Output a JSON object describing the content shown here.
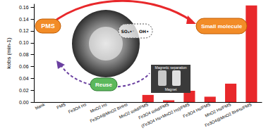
{
  "chart_data": {
    "type": "bar",
    "categories": [
      "blank",
      "PMS",
      "Fe3O4 Hs",
      "MnO2 Hs",
      "Fe3O4@MnO2 BHHs",
      "MnO2 solid/PMS",
      "Fe3O4 solid/PMS",
      "(Fe3O4 Hs+MnO2 Hs)/PMS",
      "Fe3O4 Hs/PMS",
      "MnO2 Hs/PMS",
      "Fe3O4@MnO2 BHHs/PMS"
    ],
    "values": [
      0,
      0,
      0,
      0,
      0,
      0.012,
      0.003,
      0.019,
      0.009,
      0.031,
      0.163
    ],
    "color": "#e8282b",
    "ylabel": "kobs (min-1)",
    "ylim": [
      0,
      0.165
    ],
    "yticks": [
      {
        "value": 0,
        "label": "0.00"
      },
      0.02,
      0.04,
      0.06,
      0.08,
      {
        "value": 0.1,
        "label": "0.10"
      },
      0.12,
      0.14,
      0.16
    ],
    "grid": false,
    "annotations": [
      "PMS",
      "Small molecule",
      "SO₄•⁻",
      "OH•",
      "Reuse",
      "Magnetic separation",
      "Magnet"
    ]
  }
}
